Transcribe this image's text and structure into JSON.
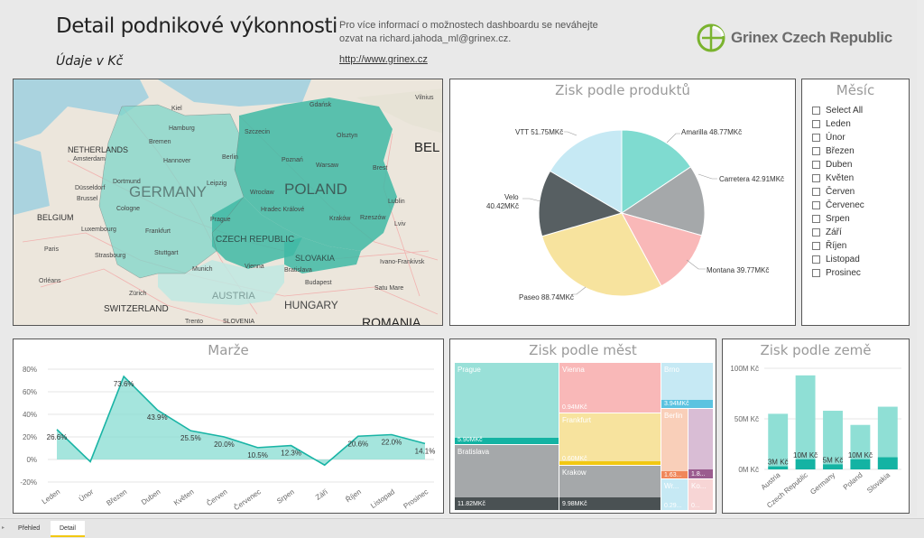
{
  "header": {
    "title": "Detail podnikové výkonnosti",
    "subtitle": "Údaje v Kč",
    "info_line1": "Pro více informací o možnostech dashboardu se neváhejte",
    "info_line2": "ozvat na richard.jahoda_ml@grinex.cz.",
    "link": "http://www.grinex.cz",
    "logo_text": "Grinex Czech Republic"
  },
  "map": {
    "countries": [
      "GERMANY",
      "POLAND",
      "CZECH REPUBLIC",
      "SLOVAKIA",
      "AUSTRIA",
      "HUNGARY",
      "BELGIUM",
      "NETHERLANDS",
      "SWITZERLAND",
      "SLOVENIA",
      "BEL",
      "ROMANIA"
    ],
    "cities": [
      "Kiel",
      "Gdańsk",
      "Vilnius",
      "Hamburg",
      "Szczecin",
      "Olsztyn",
      "Bremen",
      "Amsterdam",
      "Hannover",
      "Berlin",
      "Poznań",
      "Warsaw",
      "Brest",
      "Düsseldorf",
      "Brussel",
      "Dortmund",
      "Leipzig",
      "Wrocław",
      "Lublin",
      "Cologne",
      "Frankfurt",
      "Prague",
      "Hradec Králové",
      "Kraków",
      "Rzeszów",
      "Lviv",
      "Luxembourg",
      "Paris",
      "Strasbourg",
      "Stuttgart",
      "Munich",
      "Vienna",
      "Bratislava",
      "Ivano-Frankivsk",
      "Orléans",
      "Zürich",
      "Budapest",
      "Satu Mare",
      "Trento"
    ],
    "tint_color": "#7fd6c9",
    "strong_color": "#3fb8a5"
  },
  "products": {
    "title": "Zisk podle produktů",
    "labels": [
      "Amarilla 48.77MKč",
      "Carretera 42.91MKč",
      "Montana 39.77MKč",
      "Paseo 88.74MKč",
      "Velo",
      "40.42MKč",
      "VTT 51.75MKč"
    ]
  },
  "slicer": {
    "title": "Měsíc",
    "items": [
      "Select All",
      "Leden",
      "Únor",
      "Březen",
      "Duben",
      "Květen",
      "Červen",
      "Červenec",
      "Srpen",
      "Září",
      "Říjen",
      "Listopad",
      "Prosinec"
    ]
  },
  "margin": {
    "title": "Marže",
    "y_ticks": [
      "80%",
      "60%",
      "40%",
      "20%",
      "0%",
      "-20%"
    ],
    "data_labels": [
      "26.6%",
      "73.6%",
      "43.9%",
      "25.5%",
      "20.0%",
      "10.5%",
      "12.3%",
      "20.6%",
      "22.0%",
      "14.1%"
    ]
  },
  "cities": {
    "title": "Zisk podle měst",
    "labels": [
      "Prague",
      "Bratislava",
      "Vienna",
      "Frankfurt",
      "Krakow",
      "Brno",
      "Berlin",
      "Wr...",
      "Ko..."
    ],
    "values": [
      "5.90MKč",
      "11.82MKč",
      "0.94MKč",
      "0.60MKč",
      "9.98MKč",
      "3.94MKč",
      "1.63...",
      "1.8...",
      "0.29...",
      "0..."
    ]
  },
  "country": {
    "title": "Zisk podle země",
    "y_ticks": [
      "100M Kč",
      "50M Kč",
      "0M Kč"
    ],
    "data_labels": [
      "3M Kč",
      "10M Kč",
      "5M Kč",
      "10M Kč"
    ]
  },
  "tabs": [
    "Přehled",
    "Detail"
  ],
  "chart_data": [
    {
      "type": "pie",
      "title": "Zisk podle produktů",
      "categories": [
        "Amarilla",
        "Carretera",
        "Montana",
        "Paseo",
        "Velo",
        "VTT"
      ],
      "values": [
        48.77,
        42.91,
        39.77,
        88.74,
        40.42,
        51.75
      ],
      "colors": [
        "#7fdbd0",
        "#a5a8aa",
        "#f9b8b8",
        "#f7e39e",
        "#575f62",
        "#c6e9f4"
      ]
    },
    {
      "type": "area",
      "title": "Marže",
      "categories": [
        "Leden",
        "Únor",
        "Březen",
        "Duben",
        "Květen",
        "Červen",
        "Červenec",
        "Srpen",
        "Září",
        "Říjen",
        "Listopad",
        "Prosinec"
      ],
      "values": [
        26.6,
        -2,
        73.6,
        43.9,
        25.5,
        20.0,
        10.5,
        12.3,
        -5,
        20.6,
        22.0,
        14.1
      ],
      "ylim": [
        -20,
        80
      ],
      "color": "#19b4a5"
    },
    {
      "type": "bar",
      "title": "Zisk podle země",
      "categories": [
        "Austria",
        "Czech Republic",
        "Germany",
        "Poland",
        "Slovakia"
      ],
      "series": [
        {
          "values": [
            55,
            93,
            58,
            44,
            62
          ]
        },
        {
          "values": [
            3,
            10,
            5,
            10,
            12
          ]
        }
      ],
      "ylim": [
        0,
        100
      ],
      "colors": [
        "#8fdfd5",
        "#14b3a3"
      ]
    }
  ]
}
